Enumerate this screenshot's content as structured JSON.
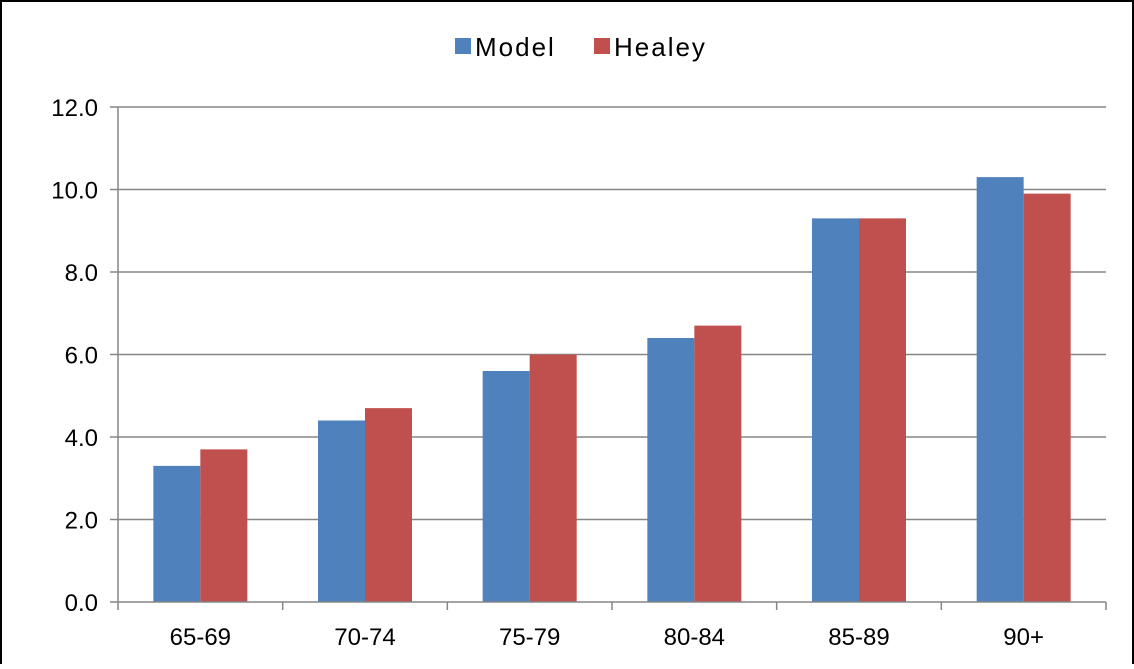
{
  "chart_data": {
    "type": "bar",
    "categories": [
      "65-69",
      "70-74",
      "75-79",
      "80-84",
      "85-89",
      "90+"
    ],
    "series": [
      {
        "name": "Model",
        "values": [
          3.3,
          4.4,
          5.6,
          6.4,
          9.3,
          10.3
        ],
        "color": "#4F81BD"
      },
      {
        "name": "Healey",
        "values": [
          3.7,
          4.7,
          6.0,
          6.7,
          9.3,
          9.9
        ],
        "color": "#C0504D"
      }
    ],
    "ylim": [
      0,
      12
    ],
    "yticks": [
      "0.0",
      "2.0",
      "4.0",
      "6.0",
      "8.0",
      "10.0",
      "12.0"
    ],
    "grid": true,
    "legend": "top-center",
    "gridline_color": "#868686",
    "frame_color": "#000000"
  }
}
